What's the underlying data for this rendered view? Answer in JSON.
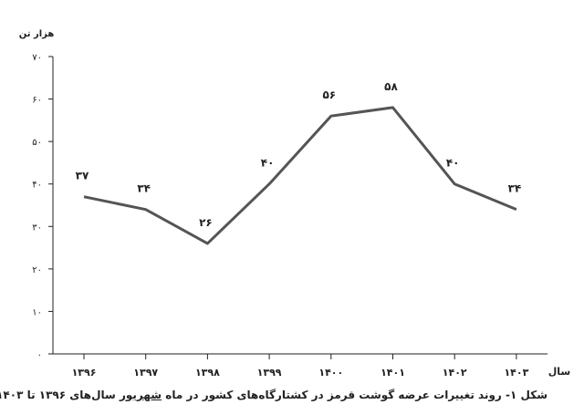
{
  "chart_data": {
    "type": "line",
    "ylabel": "هزار تن",
    "xlabel": "سال",
    "ylim": [
      0,
      70
    ],
    "yticks": [
      {
        "value": 0,
        "label": "۰"
      },
      {
        "value": 10,
        "label": "۱۰"
      },
      {
        "value": 20,
        "label": "۲۰"
      },
      {
        "value": 30,
        "label": "۳۰"
      },
      {
        "value": 40,
        "label": "۴۰"
      },
      {
        "value": 50,
        "label": "۵۰"
      },
      {
        "value": 60,
        "label": "۶۰"
      },
      {
        "value": 70,
        "label": "۷۰"
      }
    ],
    "categories": [
      "۱۳۹۶",
      "۱۳۹۷",
      "۱۳۹۸",
      "۱۳۹۹",
      "۱۴۰۰",
      "۱۴۰۱",
      "۱۴۰۲",
      "۱۴۰۳"
    ],
    "values": [
      37,
      34,
      26,
      40,
      56,
      58,
      40,
      34
    ],
    "data_labels": [
      "۳۷",
      "۳۴",
      "۲۶",
      "۴۰",
      "۵۶",
      "۵۸",
      "۴۰",
      "۳۴"
    ],
    "line_color": "#555555",
    "grid": false
  },
  "caption": {
    "part1": "شکل ۱- روند تغییرات عرضه گوشت قرمز در کشتارگاه‌های کشور در ماه",
    "underlined": "شهریور",
    "part2": "سال‌های ۱۳۹۶ تا ۱۴۰۳"
  }
}
